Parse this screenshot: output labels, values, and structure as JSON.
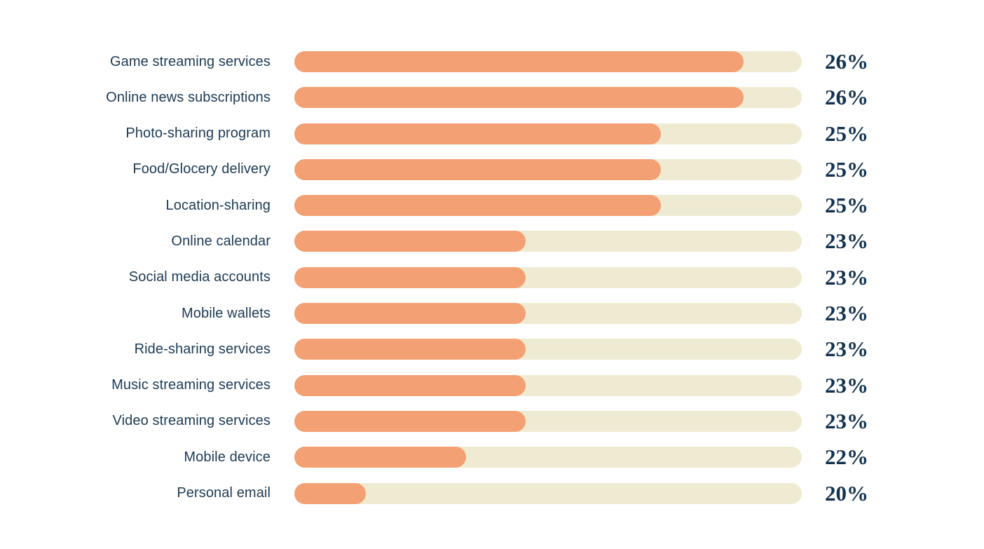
{
  "page": {
    "background_color": "#ffffff"
  },
  "chart_data": {
    "type": "bar",
    "orientation": "horizontal",
    "title": "",
    "xlabel": "",
    "ylabel": "",
    "legend": false,
    "grid": false,
    "track_color": "#efebd2",
    "fill_color": "#f3a174",
    "label_color": "#1d3a52",
    "value_color": "#14324e",
    "value_suffix": "%",
    "categories": [
      "Game streaming services",
      "Online news subscriptions",
      "Photo-sharing program",
      "Food/Glocery delivery",
      "Location-sharing",
      "Online calendar",
      "Social media accounts",
      "Mobile wallets",
      "Ride-sharing services",
      "Music streaming services",
      "Video streaming services",
      "Mobile device",
      "Personal email"
    ],
    "values": [
      26,
      26,
      25,
      25,
      25,
      23,
      23,
      23,
      23,
      23,
      23,
      22,
      20
    ],
    "bar_fill_fraction_of_track": [
      0.885,
      0.885,
      0.722,
      0.722,
      0.722,
      0.456,
      0.456,
      0.456,
      0.456,
      0.456,
      0.456,
      0.339,
      0.141
    ],
    "rows": [
      {
        "label": "Game streaming services",
        "value_label": "26%",
        "fill_percent": 88.5
      },
      {
        "label": "Online news subscriptions",
        "value_label": "26%",
        "fill_percent": 88.5
      },
      {
        "label": "Photo-sharing program",
        "value_label": "25%",
        "fill_percent": 72.2
      },
      {
        "label": "Food/Glocery delivery",
        "value_label": "25%",
        "fill_percent": 72.2
      },
      {
        "label": "Location-sharing",
        "value_label": "25%",
        "fill_percent": 72.2
      },
      {
        "label": "Online calendar",
        "value_label": "23%",
        "fill_percent": 45.6
      },
      {
        "label": "Social media accounts",
        "value_label": "23%",
        "fill_percent": 45.6
      },
      {
        "label": "Mobile wallets",
        "value_label": "23%",
        "fill_percent": 45.6
      },
      {
        "label": "Ride-sharing services",
        "value_label": "23%",
        "fill_percent": 45.6
      },
      {
        "label": "Music streaming services",
        "value_label": "23%",
        "fill_percent": 45.6
      },
      {
        "label": "Video streaming services",
        "value_label": "23%",
        "fill_percent": 45.6
      },
      {
        "label": "Mobile device",
        "value_label": "22%",
        "fill_percent": 33.9
      },
      {
        "label": "Personal email",
        "value_label": "20%",
        "fill_percent": 14.1
      }
    ]
  }
}
